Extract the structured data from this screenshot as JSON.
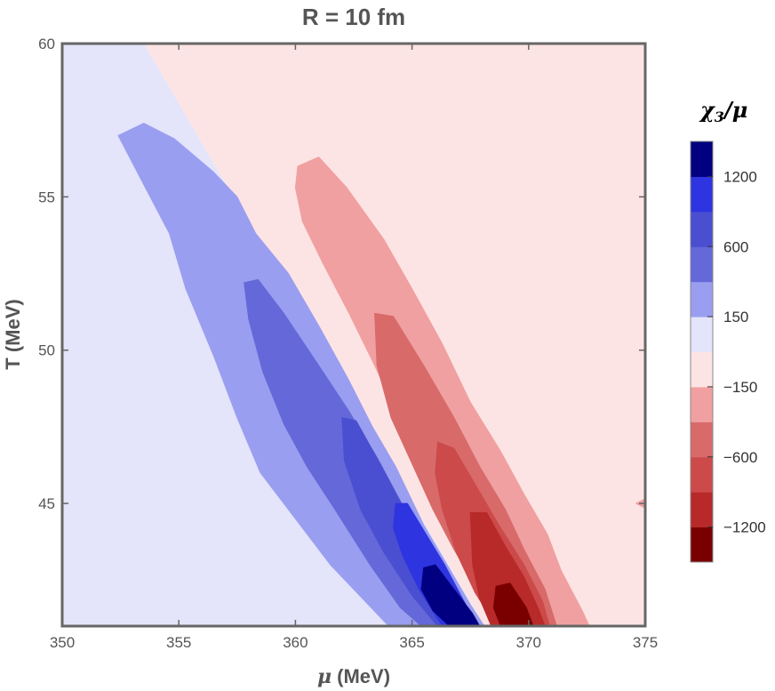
{
  "chart_data": {
    "type": "heatmap",
    "subtype": "contour",
    "title": "R = 10 fm",
    "xlabel": "μ (MeV)",
    "ylabel": "T (MeV)",
    "xlim": [
      350,
      375
    ],
    "ylim": [
      41,
      60
    ],
    "x_ticks": [
      350,
      355,
      360,
      365,
      370,
      375
    ],
    "y_ticks": [
      45,
      50,
      55,
      60
    ],
    "grid": false,
    "colorbar": {
      "title_base": "χ",
      "title_sub": "3",
      "title_tail": "/μ",
      "placement": "right",
      "levels": [
        {
          "color": "#7a0000"
        },
        {
          "color": "#b82a2a"
        },
        {
          "color": "#cc4a4a"
        },
        {
          "color": "#d86a6a"
        },
        {
          "color": "#f0a0a0"
        },
        {
          "color": "#fde4e4"
        },
        {
          "color": "#e4e4fa"
        },
        {
          "color": "#9a9ef0"
        },
        {
          "color": "#6468d8"
        },
        {
          "color": "#4a4ed0"
        },
        {
          "color": "#2e34e0"
        },
        {
          "color": "#000080"
        }
      ],
      "tick_labels": [
        {
          "label": "−1200",
          "value": -1200
        },
        {
          "label": "−600",
          "value": -600
        },
        {
          "label": "−150",
          "value": -150
        },
        {
          "label": "150",
          "value": 150
        },
        {
          "label": "600",
          "value": 600
        },
        {
          "label": "1200",
          "value": 1200
        }
      ]
    },
    "background_regions": [
      {
        "name": "negative-small-region",
        "color": "#fde4e4",
        "range": [
          -150,
          0
        ]
      },
      {
        "name": "positive-small-region",
        "color": "#e4e4fa",
        "range": [
          0,
          150
        ]
      }
    ],
    "contour_regions": [
      {
        "name": "contour-pos-150",
        "color": "#9a9ef0",
        "points": [
          [
            352.4,
            57.0
          ],
          [
            353.5,
            57.4
          ],
          [
            354.8,
            56.9
          ],
          [
            356.5,
            55.8
          ],
          [
            357.5,
            55.0
          ],
          [
            358.3,
            53.8
          ],
          [
            359.7,
            52.5
          ],
          [
            361.0,
            50.8
          ],
          [
            362.3,
            49.0
          ],
          [
            363.3,
            47.5
          ],
          [
            364.3,
            46.2
          ],
          [
            365.5,
            44.3
          ],
          [
            366.5,
            43.0
          ],
          [
            367.5,
            41.7
          ],
          [
            368.1,
            41.0
          ],
          [
            364.0,
            41.0
          ],
          [
            361.5,
            43.0
          ],
          [
            360.0,
            44.5
          ],
          [
            358.5,
            46.0
          ],
          [
            357.5,
            47.8
          ],
          [
            356.5,
            49.8
          ],
          [
            355.3,
            52.0
          ],
          [
            354.6,
            53.8
          ],
          [
            353.5,
            55.4
          ]
        ]
      },
      {
        "name": "contour-pos-600",
        "color": "#6468d8",
        "points": [
          [
            357.8,
            52.2
          ],
          [
            358.4,
            52.3
          ],
          [
            359.5,
            51.2
          ],
          [
            361.0,
            49.5
          ],
          [
            362.3,
            48.0
          ],
          [
            363.5,
            46.5
          ],
          [
            364.7,
            44.8
          ],
          [
            365.7,
            43.3
          ],
          [
            366.6,
            42.3
          ],
          [
            367.6,
            41.0
          ],
          [
            365.4,
            41.0
          ],
          [
            364.5,
            41.6
          ],
          [
            363.2,
            43.0
          ],
          [
            361.7,
            44.8
          ],
          [
            360.5,
            46.2
          ],
          [
            359.5,
            47.6
          ],
          [
            358.6,
            49.3
          ],
          [
            358.0,
            51.0
          ]
        ]
      },
      {
        "name": "contour-pos-800",
        "color": "#4a4ed0",
        "points": [
          [
            362.0,
            47.8
          ],
          [
            362.6,
            47.7
          ],
          [
            363.7,
            46.2
          ],
          [
            364.8,
            44.6
          ],
          [
            365.8,
            43.2
          ],
          [
            366.7,
            42.2
          ],
          [
            367.4,
            41.0
          ],
          [
            366.1,
            41.0
          ],
          [
            365.0,
            42.0
          ],
          [
            363.8,
            43.4
          ],
          [
            362.8,
            44.8
          ],
          [
            362.1,
            46.4
          ]
        ]
      },
      {
        "name": "contour-pos-1200",
        "color": "#2e34e0",
        "points": [
          [
            364.3,
            45.0
          ],
          [
            364.8,
            45.0
          ],
          [
            365.6,
            44.0
          ],
          [
            366.4,
            43.0
          ],
          [
            367.3,
            41.7
          ],
          [
            367.7,
            41.0
          ],
          [
            366.3,
            41.0
          ],
          [
            365.3,
            42.2
          ],
          [
            364.6,
            43.3
          ],
          [
            364.2,
            44.2
          ]
        ]
      },
      {
        "name": "contour-pos-max",
        "color": "#000080",
        "points": [
          [
            365.5,
            42.9
          ],
          [
            366.0,
            43.0
          ],
          [
            366.8,
            42.2
          ],
          [
            367.6,
            41.4
          ],
          [
            367.9,
            41.0
          ],
          [
            366.6,
            41.0
          ],
          [
            365.9,
            41.5
          ],
          [
            365.4,
            42.2
          ]
        ]
      },
      {
        "name": "contour-neg-150",
        "color": "#f0a0a0",
        "points": [
          [
            360.1,
            56.0
          ],
          [
            361.0,
            56.3
          ],
          [
            362.2,
            55.3
          ],
          [
            363.8,
            53.6
          ],
          [
            365.0,
            52.0
          ],
          [
            366.3,
            50.2
          ],
          [
            367.5,
            48.3
          ],
          [
            368.8,
            46.7
          ],
          [
            369.8,
            45.3
          ],
          [
            370.8,
            44.0
          ],
          [
            371.4,
            42.8
          ],
          [
            372.3,
            41.5
          ],
          [
            372.6,
            41.0
          ],
          [
            369.3,
            41.0
          ],
          [
            368.4,
            42.0
          ],
          [
            367.4,
            43.3
          ],
          [
            366.5,
            44.6
          ],
          [
            365.4,
            46.3
          ],
          [
            364.4,
            47.8
          ],
          [
            363.4,
            49.5
          ],
          [
            362.3,
            51.2
          ],
          [
            361.2,
            52.8
          ],
          [
            360.3,
            54.2
          ],
          [
            360.0,
            55.3
          ]
        ]
      },
      {
        "name": "contour-neg-600",
        "color": "#d86a6a",
        "points": [
          [
            363.4,
            51.2
          ],
          [
            364.2,
            51.1
          ],
          [
            365.5,
            49.5
          ],
          [
            366.8,
            47.8
          ],
          [
            367.9,
            46.2
          ],
          [
            369.0,
            44.8
          ],
          [
            369.8,
            43.5
          ],
          [
            370.7,
            42.2
          ],
          [
            371.2,
            41.0
          ],
          [
            368.8,
            41.0
          ],
          [
            367.8,
            42.2
          ],
          [
            366.8,
            43.5
          ],
          [
            365.9,
            44.8
          ],
          [
            365.0,
            46.3
          ],
          [
            364.1,
            47.8
          ],
          [
            363.5,
            49.5
          ]
        ]
      },
      {
        "name": "contour-neg-800",
        "color": "#cc4a4a",
        "points": [
          [
            366.1,
            47.0
          ],
          [
            366.8,
            46.8
          ],
          [
            367.8,
            45.5
          ],
          [
            368.8,
            44.2
          ],
          [
            369.8,
            43.0
          ],
          [
            370.6,
            41.8
          ],
          [
            370.9,
            41.0
          ],
          [
            368.6,
            41.0
          ],
          [
            367.7,
            42.1
          ],
          [
            366.9,
            43.4
          ],
          [
            366.3,
            44.8
          ],
          [
            366.0,
            46.0
          ]
        ]
      },
      {
        "name": "contour-neg-1200",
        "color": "#b82a2a",
        "points": [
          [
            367.5,
            44.7
          ],
          [
            368.2,
            44.7
          ],
          [
            369.0,
            43.6
          ],
          [
            369.8,
            42.6
          ],
          [
            370.4,
            41.6
          ],
          [
            370.7,
            41.0
          ],
          [
            368.4,
            41.0
          ],
          [
            367.9,
            41.9
          ],
          [
            367.6,
            43.0
          ]
        ]
      },
      {
        "name": "contour-neg-max",
        "color": "#7a0000",
        "points": [
          [
            368.6,
            42.3
          ],
          [
            369.2,
            42.4
          ],
          [
            369.9,
            41.6
          ],
          [
            370.2,
            41.0
          ],
          [
            368.8,
            41.0
          ],
          [
            368.5,
            41.6
          ]
        ]
      },
      {
        "name": "contour-edge-blob",
        "color": "#f0a0a0",
        "points": [
          [
            374.6,
            45.0
          ],
          [
            375.0,
            45.15
          ],
          [
            375.0,
            44.85
          ]
        ]
      }
    ]
  }
}
